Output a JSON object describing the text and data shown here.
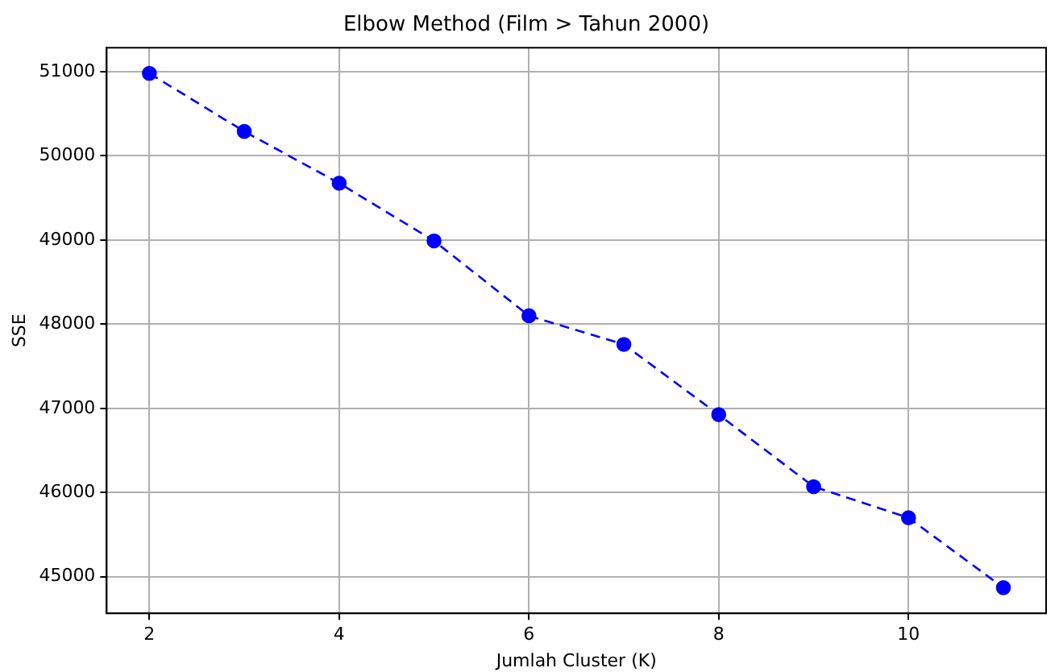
{
  "chart_data": {
    "type": "line",
    "title": "Elbow Method (Film > Tahun 2000)",
    "xlabel": "Jumlah Cluster (K)",
    "ylabel": "SSE",
    "x": [
      2,
      3,
      4,
      5,
      6,
      7,
      8,
      9,
      10,
      11
    ],
    "series": [
      {
        "color": "#0000ff",
        "values": [
          50980,
          50290,
          49675,
          48990,
          48100,
          47760,
          46925,
          46070,
          45700,
          44870
        ]
      }
    ],
    "xlim": [
      1.55,
      11.45
    ],
    "xticks": [
      2,
      4,
      6,
      8,
      10
    ],
    "ylim": [
      44565,
      51285
    ],
    "yticks": [
      45000,
      46000,
      47000,
      48000,
      49000,
      50000,
      51000
    ],
    "grid": true,
    "marker": "circle",
    "line_style": "dashed"
  }
}
